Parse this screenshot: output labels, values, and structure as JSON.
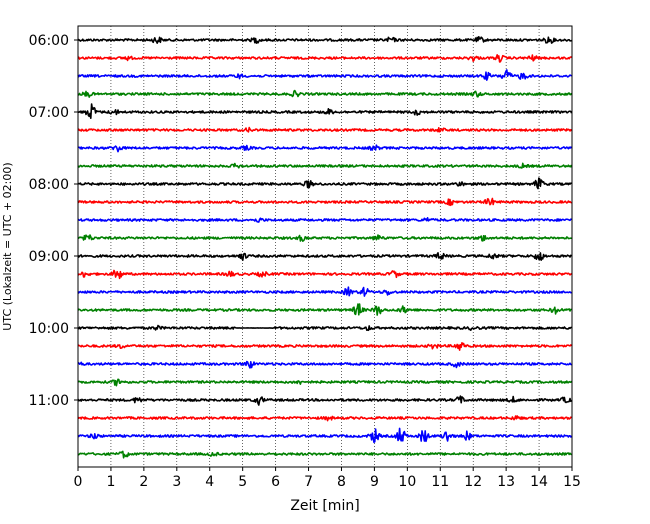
{
  "chart_data": {
    "type": "line",
    "title": "",
    "xlabel": "Zeit  [min]",
    "ylabel": "UTC (Lokalzeit = UTC + 02:00)",
    "xlim": [
      0,
      15
    ],
    "xticks": [
      0,
      1,
      2,
      3,
      4,
      5,
      6,
      7,
      8,
      9,
      10,
      11,
      12,
      13,
      14,
      15
    ],
    "ytick_labels": [
      "06:00",
      "07:00",
      "08:00",
      "09:00",
      "10:00",
      "11:00"
    ],
    "grid_x": "dotted",
    "line_colors": [
      "#000000",
      "#ff0000",
      "#0000ff",
      "#008000"
    ],
    "trace_interval_min": 15,
    "series": [
      {
        "start": "06:00",
        "color": "#000000",
        "events": [
          [
            2.4,
            0.4
          ],
          [
            5.4,
            0.3
          ],
          [
            9.5,
            0.3
          ],
          [
            12.2,
            0.3
          ],
          [
            14.3,
            0.4
          ]
        ]
      },
      {
        "start": "06:15",
        "color": "#ff0000",
        "events": [
          [
            1.5,
            0.2
          ],
          [
            12.0,
            0.3
          ],
          [
            12.8,
            0.4
          ],
          [
            13.8,
            0.3
          ]
        ]
      },
      {
        "start": "06:30",
        "color": "#0000ff",
        "events": [
          [
            4.9,
            0.2
          ],
          [
            12.4,
            0.4
          ],
          [
            13.0,
            0.8
          ],
          [
            13.5,
            0.4
          ]
        ]
      },
      {
        "start": "06:45",
        "color": "#008000",
        "events": [
          [
            0.3,
            0.3
          ],
          [
            6.6,
            0.3
          ],
          [
            12.1,
            0.3
          ]
        ]
      },
      {
        "start": "07:00",
        "color": "#000000",
        "events": [
          [
            0.4,
            1.0
          ],
          [
            1.1,
            0.3
          ],
          [
            7.6,
            0.3
          ],
          [
            10.3,
            0.3
          ]
        ]
      },
      {
        "start": "07:15",
        "color": "#ff0000",
        "events": [
          [
            5.2,
            0.2
          ],
          [
            11.0,
            0.2
          ]
        ]
      },
      {
        "start": "07:30",
        "color": "#0000ff",
        "events": [
          [
            1.2,
            0.4
          ],
          [
            5.1,
            0.2
          ],
          [
            9.0,
            0.3
          ]
        ]
      },
      {
        "start": "07:45",
        "color": "#008000",
        "events": [
          [
            4.8,
            0.2
          ],
          [
            13.5,
            0.2
          ]
        ]
      },
      {
        "start": "08:00",
        "color": "#000000",
        "events": [
          [
            7.0,
            0.4
          ],
          [
            11.6,
            0.2
          ],
          [
            14.0,
            0.7
          ]
        ]
      },
      {
        "start": "08:15",
        "color": "#ff0000",
        "events": [
          [
            11.3,
            0.3
          ],
          [
            12.5,
            0.5
          ]
        ]
      },
      {
        "start": "08:30",
        "color": "#0000ff",
        "events": [
          [
            5.5,
            0.2
          ],
          [
            10.6,
            0.2
          ]
        ]
      },
      {
        "start": "08:45",
        "color": "#008000",
        "events": [
          [
            0.3,
            0.4
          ],
          [
            6.8,
            0.3
          ],
          [
            9.1,
            0.3
          ],
          [
            12.3,
            0.3
          ]
        ]
      },
      {
        "start": "09:00",
        "color": "#000000",
        "events": [
          [
            5.0,
            0.4
          ],
          [
            11.0,
            0.4
          ],
          [
            12.6,
            0.3
          ],
          [
            14.0,
            0.6
          ]
        ]
      },
      {
        "start": "09:15",
        "color": "#ff0000",
        "events": [
          [
            0.2,
            0.3
          ],
          [
            1.2,
            0.7
          ],
          [
            4.6,
            0.3
          ],
          [
            5.6,
            0.3
          ],
          [
            9.6,
            0.4
          ]
        ]
      },
      {
        "start": "09:30",
        "color": "#0000ff",
        "events": [
          [
            8.2,
            0.5
          ],
          [
            8.7,
            0.5
          ],
          [
            9.4,
            0.3
          ]
        ]
      },
      {
        "start": "09:45",
        "color": "#008000",
        "events": [
          [
            8.5,
            0.8
          ],
          [
            9.1,
            0.6
          ],
          [
            9.9,
            0.4
          ],
          [
            14.5,
            0.4
          ]
        ]
      },
      {
        "start": "10:00",
        "color": "#000000",
        "events": [
          [
            2.4,
            0.2
          ],
          [
            8.8,
            0.2
          ],
          [
            12.0,
            0.2
          ]
        ],
        "gaps": [
          [
            4.8,
            5.9
          ]
        ]
      },
      {
        "start": "10:15",
        "color": "#ff0000",
        "events": [
          [
            1.3,
            0.2
          ],
          [
            10.8,
            0.3
          ],
          [
            11.6,
            0.6
          ]
        ]
      },
      {
        "start": "10:30",
        "color": "#0000ff",
        "events": [
          [
            0.0,
            0.2
          ],
          [
            5.2,
            0.5
          ],
          [
            11.5,
            0.3
          ]
        ]
      },
      {
        "start": "10:45",
        "color": "#008000",
        "events": [
          [
            1.2,
            0.4
          ],
          [
            6.7,
            0.2
          ]
        ]
      },
      {
        "start": "11:00",
        "color": "#000000",
        "events": [
          [
            1.8,
            0.3
          ],
          [
            5.5,
            0.5
          ],
          [
            11.6,
            0.4
          ],
          [
            13.2,
            0.3
          ],
          [
            14.8,
            0.3
          ]
        ]
      },
      {
        "start": "11:15",
        "color": "#ff0000",
        "events": [
          [
            7.6,
            0.2
          ],
          [
            13.3,
            0.2
          ]
        ]
      },
      {
        "start": "11:30",
        "color": "#0000ff",
        "events": [
          [
            0.5,
            0.3
          ],
          [
            9.0,
            0.8
          ],
          [
            9.8,
            1.0
          ],
          [
            10.5,
            0.8
          ],
          [
            11.2,
            0.7
          ],
          [
            11.8,
            0.5
          ]
        ]
      },
      {
        "start": "11:45",
        "color": "#008000",
        "events": [
          [
            1.4,
            0.4
          ],
          [
            4.1,
            0.2
          ]
        ]
      }
    ]
  }
}
